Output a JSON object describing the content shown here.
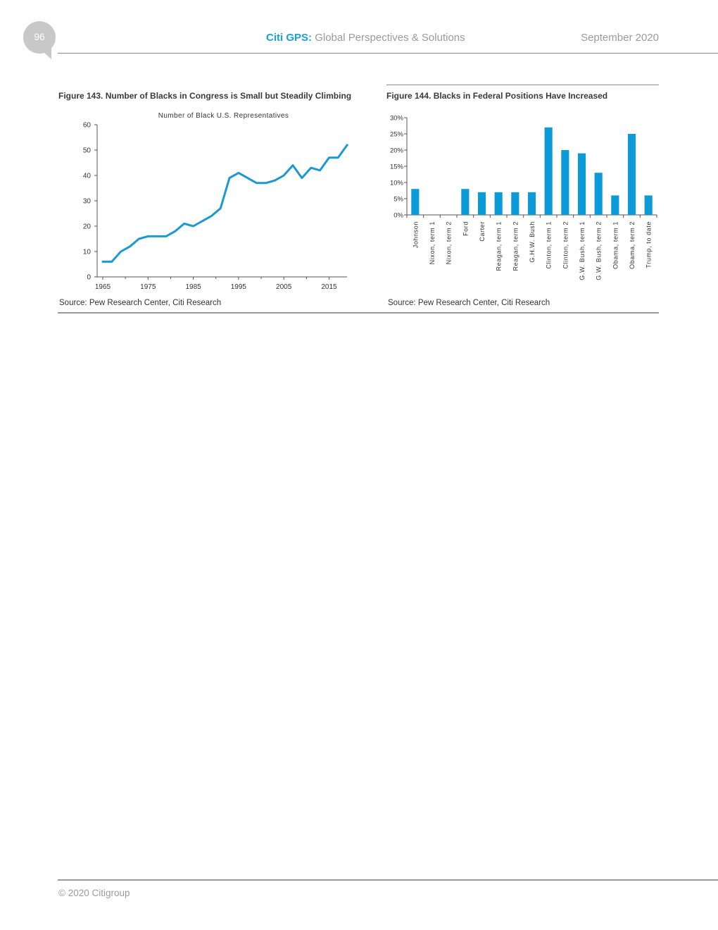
{
  "header": {
    "page_number": "96",
    "brand": "Citi GPS:",
    "subtitle": "Global Perspectives & Solutions",
    "date": "September 2020"
  },
  "colors": {
    "accent": "#1ba0d7",
    "bar": "#0d9ad9",
    "line": "#1b9ad2"
  },
  "figure143": {
    "title": "Figure 143. Number of Blacks in Congress is Small but Steadily Climbing",
    "source": "Source: Pew Research Center, Citi Research"
  },
  "figure144": {
    "title": "Figure 144. Blacks in Federal Positions Have Increased",
    "source": "Source: Pew Research Center, Citi Research"
  },
  "footer": {
    "copyright": "© 2020 Citigroup"
  },
  "chart_data": [
    {
      "type": "line",
      "title": "Number of Black U.S. Representatives",
      "xlabel": "",
      "ylabel": "",
      "xlim": [
        1965,
        2019
      ],
      "ylim": [
        0,
        60
      ],
      "x_ticks": [
        1965,
        1975,
        1985,
        1995,
        2005,
        2015
      ],
      "y_ticks": [
        0,
        10,
        20,
        30,
        40,
        50,
        60
      ],
      "grid": false,
      "series": [
        {
          "x": [
            1965,
            1967,
            1969,
            1971,
            1973,
            1975,
            1977,
            1979,
            1981,
            1983,
            1985,
            1987,
            1989,
            1991,
            1993,
            1995,
            1997,
            1999,
            2001,
            2003,
            2005,
            2007,
            2009,
            2011,
            2013,
            2015,
            2017,
            2019
          ],
          "y": [
            6,
            6,
            10,
            12,
            15,
            16,
            16,
            16,
            18,
            21,
            20,
            22,
            24,
            27,
            39,
            41,
            39,
            37,
            37,
            38,
            40,
            44,
            39,
            43,
            42,
            47,
            47,
            52
          ]
        }
      ]
    },
    {
      "type": "bar",
      "title": "",
      "xlabel": "",
      "ylabel": "",
      "ylim": [
        0,
        30
      ],
      "y_ticks": [
        "0%",
        "5%",
        "10%",
        "15%",
        "20%",
        "25%",
        "30%"
      ],
      "y_tick_values": [
        0,
        5,
        10,
        15,
        20,
        25,
        30
      ],
      "grid": false,
      "categories": [
        "Johnson",
        "Nixon, term 1",
        "Nixon, term 2",
        "Ford",
        "Carter",
        "Reagan, term 1",
        "Reagan, term 2",
        "G.H.W. Bush",
        "Clinton, term 1",
        "Clinton, term 2",
        "G.W. Bush, term 1",
        "G.W. Bush, term 2",
        "Obama, term 1",
        "Obama, term 2",
        "Trump, to date"
      ],
      "values": [
        8,
        0,
        0,
        8,
        7,
        7,
        7,
        7,
        27,
        20,
        19,
        13,
        6,
        25,
        6
      ]
    }
  ]
}
